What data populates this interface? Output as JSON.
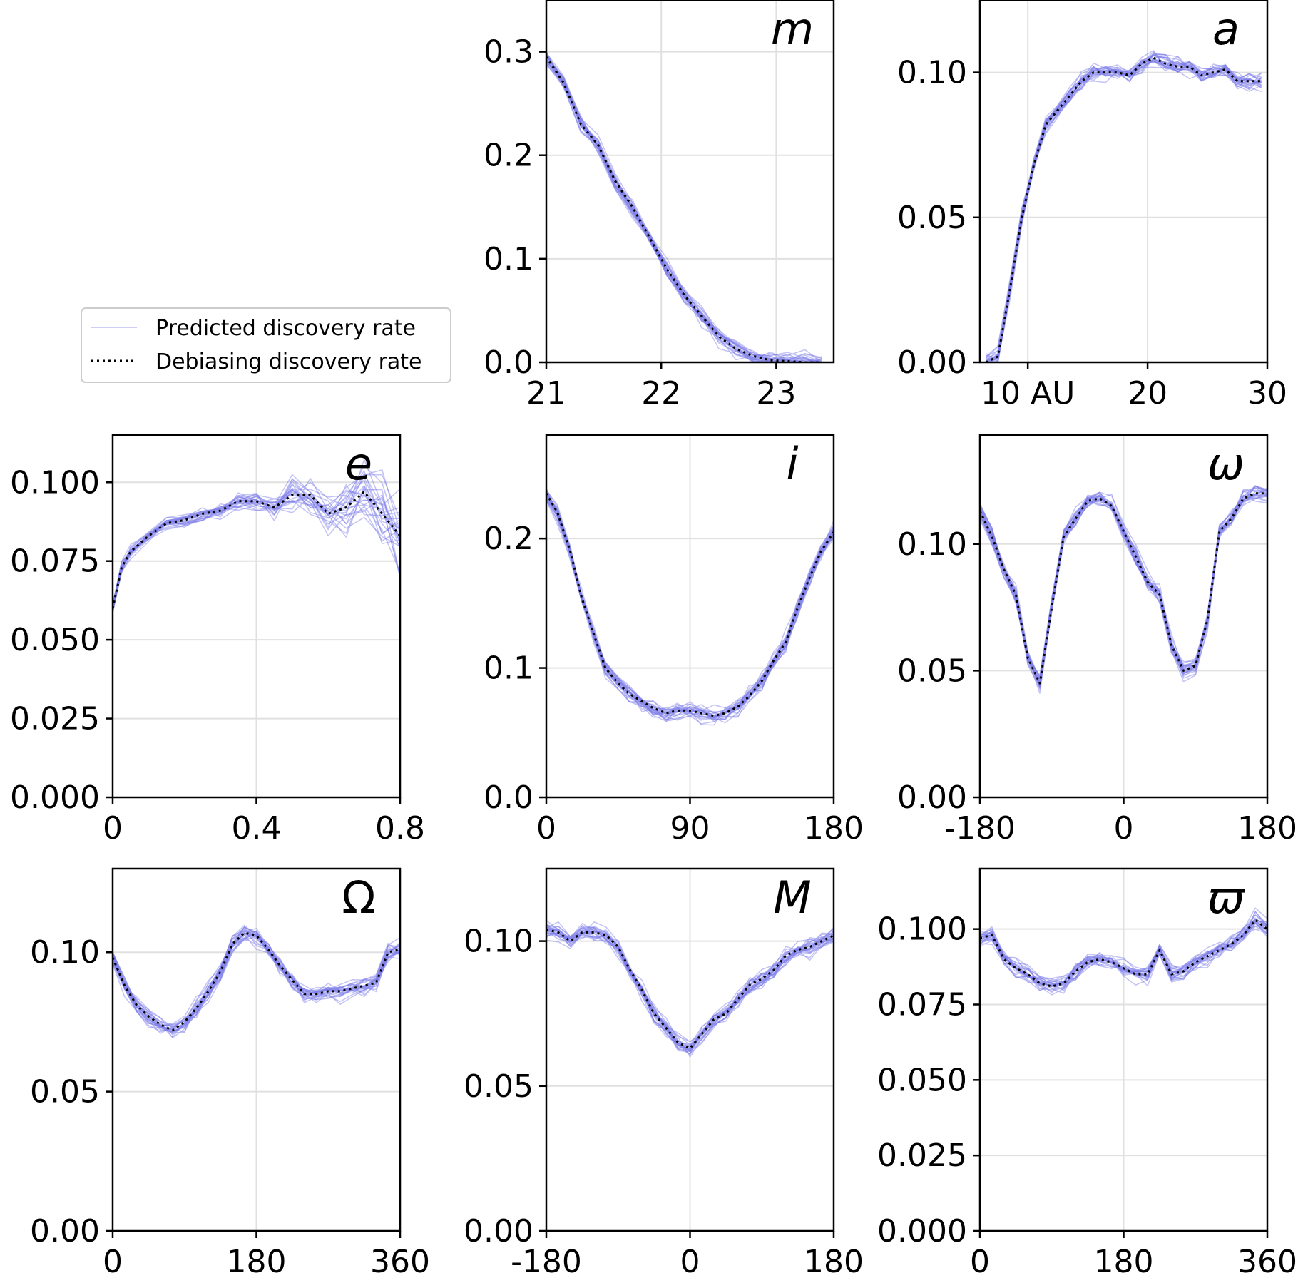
{
  "colors": {
    "predicted": "#7b7be8",
    "debiasing": "#000000",
    "grid": "#e0e0e0",
    "axis": "#000000"
  },
  "legend": {
    "placement": "left of top-middle panel",
    "entries": [
      {
        "key": "predicted",
        "label": "Predicted discovery rate",
        "style": "thin blue line"
      },
      {
        "key": "debiasing",
        "label": "Debiasing discovery rate",
        "style": "black dotted line"
      }
    ]
  },
  "chart_data": [
    {
      "id": "m",
      "type": "line",
      "label": "m",
      "italic": true,
      "xlim": [
        21,
        23.5
      ],
      "ylim": [
        0,
        0.35
      ],
      "xticks": [
        21,
        22,
        23
      ],
      "xtick_labels": [
        "21",
        "22",
        "23"
      ],
      "yticks": [
        0,
        0.1,
        0.2,
        0.3
      ],
      "ytick_labels": [
        "0.0",
        "0.1",
        "0.2",
        "0.3"
      ],
      "series": [
        {
          "key": "debiasing",
          "x": [
            21.0,
            21.15,
            21.3,
            21.45,
            21.6,
            21.75,
            21.9,
            22.05,
            22.2,
            22.35,
            22.5,
            22.65,
            22.8,
            22.95,
            23.1,
            23.25,
            23.4
          ],
          "y": [
            0.295,
            0.27,
            0.23,
            0.21,
            0.175,
            0.15,
            0.12,
            0.09,
            0.065,
            0.045,
            0.025,
            0.013,
            0.006,
            0.002,
            0.001,
            0.0,
            0.0
          ]
        }
      ]
    },
    {
      "id": "a",
      "type": "line",
      "label": "a",
      "italic": true,
      "xlim": [
        6,
        30
      ],
      "ylim": [
        0,
        0.125
      ],
      "xticks": [
        10,
        20,
        30
      ],
      "xtick_labels": [
        "10 AU",
        "20",
        "30"
      ],
      "yticks": [
        0,
        0.05,
        0.1
      ],
      "ytick_labels": [
        "0.00",
        "0.05",
        "0.10"
      ],
      "series": [
        {
          "key": "debiasing",
          "x": [
            6.5,
            7.5,
            8.5,
            9.5,
            10.5,
            11.5,
            12.5,
            13.5,
            14.5,
            15.5,
            16.5,
            17.5,
            18.5,
            19.5,
            20.5,
            21.5,
            22.5,
            23.5,
            24.5,
            25.5,
            26.5,
            27.5,
            28.5,
            29.5
          ],
          "y": [
            0.0,
            0.002,
            0.025,
            0.05,
            0.068,
            0.082,
            0.087,
            0.092,
            0.097,
            0.1,
            0.1,
            0.1,
            0.099,
            0.103,
            0.105,
            0.103,
            0.102,
            0.102,
            0.099,
            0.1,
            0.101,
            0.097,
            0.097,
            0.097
          ]
        }
      ]
    },
    {
      "id": "e",
      "type": "line",
      "label": "e",
      "italic": true,
      "xlim": [
        0,
        0.8
      ],
      "ylim": [
        0,
        0.115
      ],
      "xticks": [
        0,
        0.4,
        0.8
      ],
      "xtick_labels": [
        "0",
        "0.4",
        "0.8"
      ],
      "yticks": [
        0,
        0.025,
        0.05,
        0.075,
        0.1
      ],
      "ytick_labels": [
        "0.000",
        "0.025",
        "0.050",
        "0.075",
        "0.100"
      ],
      "series": [
        {
          "key": "debiasing",
          "x": [
            0.0,
            0.025,
            0.05,
            0.1,
            0.15,
            0.2,
            0.25,
            0.3,
            0.35,
            0.4,
            0.45,
            0.5,
            0.55,
            0.6,
            0.65,
            0.7,
            0.75,
            0.8
          ],
          "y": [
            0.06,
            0.073,
            0.078,
            0.083,
            0.087,
            0.088,
            0.09,
            0.091,
            0.094,
            0.094,
            0.092,
            0.096,
            0.096,
            0.09,
            0.092,
            0.097,
            0.09,
            0.083
          ]
        }
      ]
    },
    {
      "id": "i",
      "type": "line",
      "label": "i",
      "italic": true,
      "xlim": [
        0,
        180
      ],
      "ylim": [
        0,
        0.28
      ],
      "xticks": [
        0,
        90,
        180
      ],
      "xtick_labels": [
        "0",
        "90",
        "180"
      ],
      "yticks": [
        0,
        0.1,
        0.2
      ],
      "ytick_labels": [
        "0.0",
        "0.1",
        "0.2"
      ],
      "series": [
        {
          "key": "debiasing",
          "x": [
            0,
            7,
            15,
            22,
            30,
            37,
            45,
            52,
            60,
            67,
            75,
            82,
            90,
            97,
            105,
            112,
            120,
            127,
            135,
            142,
            150,
            157,
            165,
            172,
            180
          ],
          "y": [
            0.235,
            0.22,
            0.19,
            0.155,
            0.125,
            0.1,
            0.088,
            0.08,
            0.074,
            0.069,
            0.065,
            0.067,
            0.067,
            0.065,
            0.063,
            0.065,
            0.07,
            0.078,
            0.09,
            0.105,
            0.12,
            0.145,
            0.17,
            0.19,
            0.205
          ]
        }
      ]
    },
    {
      "id": "omega",
      "type": "line",
      "label": "ω",
      "italic": true,
      "xlim": [
        -180,
        180
      ],
      "ylim": [
        0,
        0.143
      ],
      "xticks": [
        -180,
        0,
        180
      ],
      "xtick_labels": [
        "-180",
        "0",
        "180"
      ],
      "yticks": [
        0,
        0.05,
        0.1
      ],
      "ytick_labels": [
        "0.00",
        "0.05",
        "0.10"
      ],
      "series": [
        {
          "key": "debiasing",
          "x": [
            -180,
            -165,
            -150,
            -135,
            -120,
            -105,
            -90,
            -75,
            -60,
            -45,
            -30,
            -15,
            0,
            15,
            30,
            45,
            60,
            75,
            90,
            105,
            120,
            135,
            150,
            165,
            180
          ],
          "y": [
            0.113,
            0.103,
            0.09,
            0.08,
            0.055,
            0.045,
            0.075,
            0.103,
            0.11,
            0.117,
            0.118,
            0.115,
            0.105,
            0.095,
            0.085,
            0.08,
            0.06,
            0.05,
            0.052,
            0.07,
            0.105,
            0.11,
            0.118,
            0.12,
            0.12
          ]
        }
      ]
    },
    {
      "id": "Omega",
      "type": "line",
      "label": "Ω",
      "italic": false,
      "xlim": [
        0,
        360
      ],
      "ylim": [
        0,
        0.13
      ],
      "xticks": [
        0,
        180,
        360
      ],
      "xtick_labels": [
        "0",
        "180",
        "360"
      ],
      "yticks": [
        0,
        0.05,
        0.1
      ],
      "ytick_labels": [
        "0.00",
        "0.05",
        "0.10"
      ],
      "series": [
        {
          "key": "debiasing",
          "x": [
            0,
            15,
            30,
            45,
            60,
            75,
            90,
            105,
            120,
            135,
            150,
            165,
            180,
            195,
            210,
            225,
            240,
            255,
            270,
            285,
            300,
            315,
            330,
            345,
            360
          ],
          "y": [
            0.098,
            0.088,
            0.081,
            0.077,
            0.074,
            0.072,
            0.075,
            0.08,
            0.086,
            0.093,
            0.103,
            0.107,
            0.106,
            0.101,
            0.095,
            0.09,
            0.085,
            0.085,
            0.086,
            0.086,
            0.087,
            0.088,
            0.089,
            0.1,
            0.101
          ]
        }
      ]
    },
    {
      "id": "M",
      "type": "line",
      "label": "M",
      "italic": true,
      "xlim": [
        -180,
        180
      ],
      "ylim": [
        0,
        0.125
      ],
      "xticks": [
        -180,
        0,
        180
      ],
      "xtick_labels": [
        "-180",
        "0",
        "180"
      ],
      "yticks": [
        0,
        0.05,
        0.1
      ],
      "ytick_labels": [
        "0.00",
        "0.05",
        "0.10"
      ],
      "series": [
        {
          "key": "debiasing",
          "x": [
            -180,
            -165,
            -150,
            -135,
            -120,
            -105,
            -90,
            -75,
            -60,
            -45,
            -30,
            -15,
            0,
            15,
            30,
            45,
            60,
            75,
            90,
            105,
            120,
            135,
            150,
            165,
            180
          ],
          "y": [
            0.104,
            0.103,
            0.1,
            0.103,
            0.103,
            0.102,
            0.098,
            0.09,
            0.083,
            0.075,
            0.07,
            0.065,
            0.063,
            0.068,
            0.073,
            0.075,
            0.08,
            0.085,
            0.087,
            0.09,
            0.095,
            0.097,
            0.098,
            0.1,
            0.102
          ]
        }
      ]
    },
    {
      "id": "varpi",
      "type": "line",
      "label": "ϖ",
      "italic": true,
      "xlim": [
        0,
        360
      ],
      "ylim": [
        0,
        0.12
      ],
      "xticks": [
        0,
        180,
        360
      ],
      "xtick_labels": [
        "0",
        "180",
        "360"
      ],
      "yticks": [
        0,
        0.025,
        0.05,
        0.075,
        0.1
      ],
      "ytick_labels": [
        "0.000",
        "0.025",
        "0.050",
        "0.075",
        "0.100"
      ],
      "series": [
        {
          "key": "debiasing",
          "x": [
            0,
            15,
            30,
            45,
            60,
            75,
            90,
            105,
            120,
            135,
            150,
            165,
            180,
            195,
            210,
            225,
            240,
            255,
            270,
            285,
            300,
            315,
            330,
            345,
            360
          ],
          "y": [
            0.097,
            0.098,
            0.09,
            0.087,
            0.085,
            0.082,
            0.081,
            0.082,
            0.086,
            0.089,
            0.09,
            0.089,
            0.087,
            0.085,
            0.085,
            0.093,
            0.085,
            0.086,
            0.089,
            0.091,
            0.093,
            0.095,
            0.098,
            0.103,
            0.1
          ]
        }
      ]
    }
  ]
}
